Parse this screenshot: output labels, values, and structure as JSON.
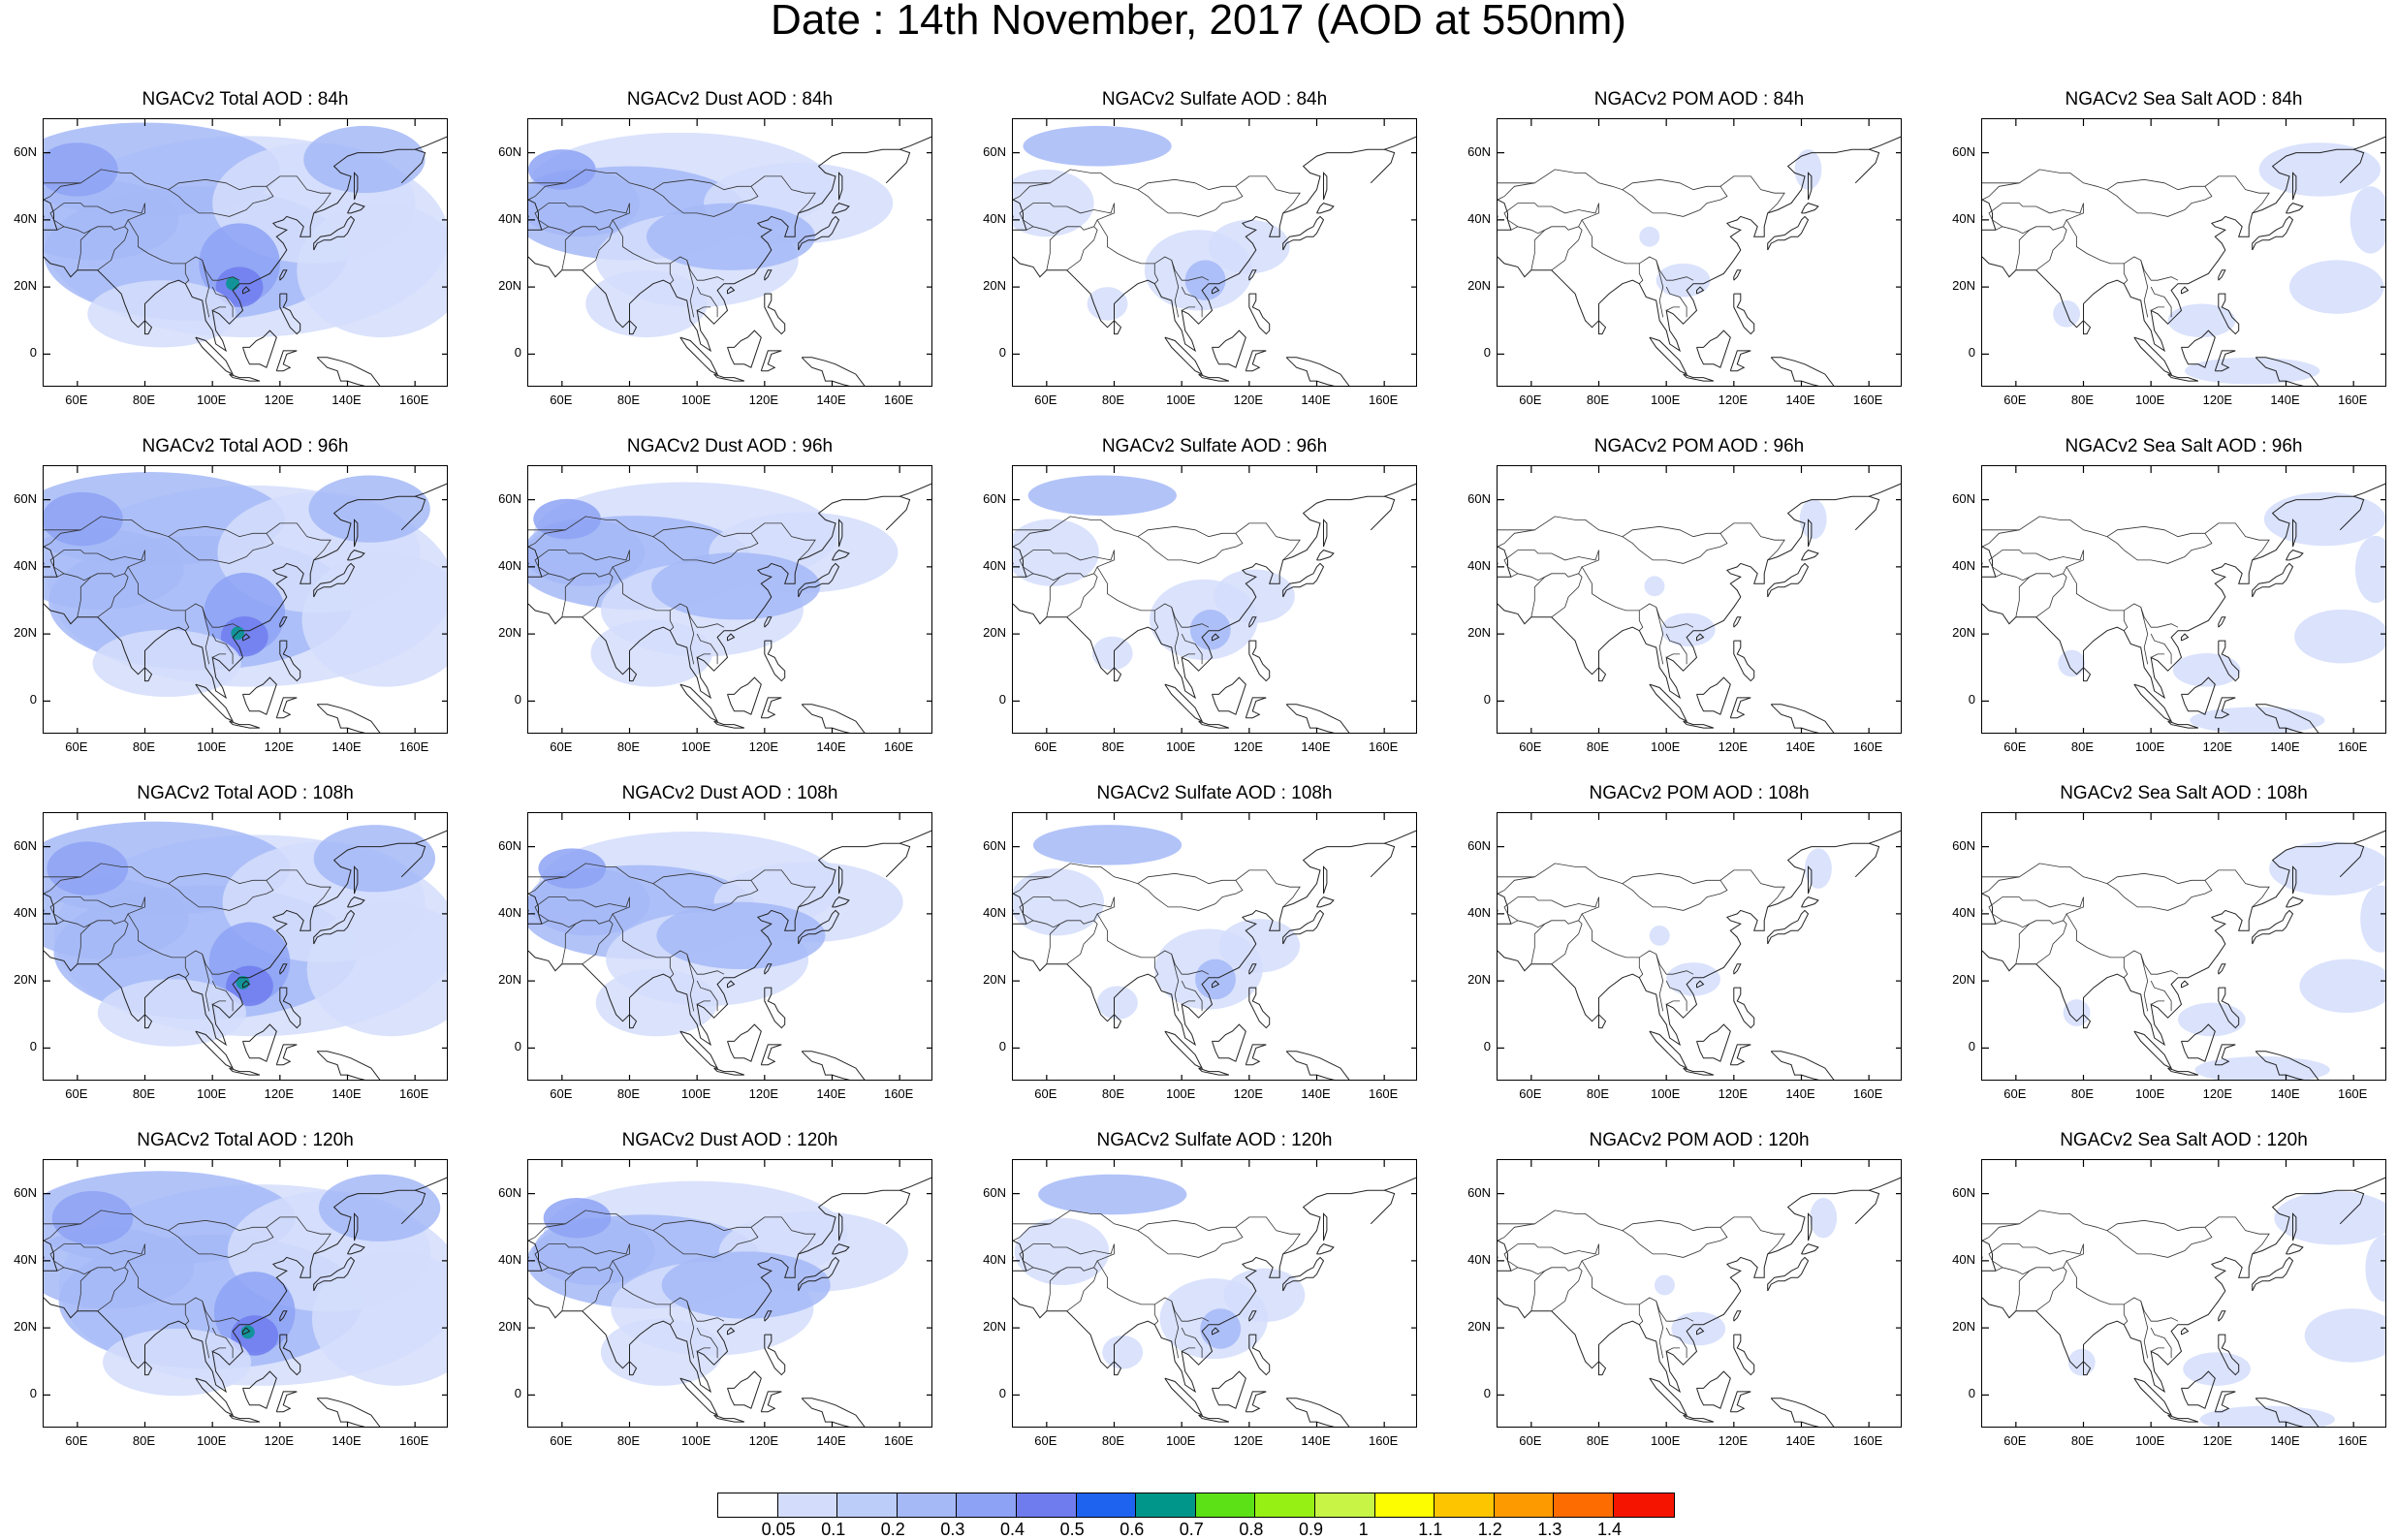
{
  "title": "Date : 14th November, 2017 (AOD at 550nm)",
  "panel_titles": [
    [
      "NGACv2 Total AOD : 84h",
      "NGACv2 Dust AOD : 84h",
      "NGACv2 Sulfate AOD : 84h",
      "NGACv2 POM AOD : 84h",
      "NGACv2 Sea Salt AOD : 84h"
    ],
    [
      "NGACv2 Total AOD : 96h",
      "NGACv2 Dust AOD : 96h",
      "NGACv2 Sulfate AOD : 96h",
      "NGACv2 POM AOD : 96h",
      "NGACv2 Sea Salt AOD : 96h"
    ],
    [
      "NGACv2 Total AOD : 108h",
      "NGACv2 Dust AOD : 108h",
      "NGACv2 Sulfate AOD : 108h",
      "NGACv2 POM AOD : 108h",
      "NGACv2 Sea Salt AOD : 108h"
    ],
    [
      "NGACv2 Total AOD : 120h",
      "NGACv2 Dust AOD : 120h",
      "NGACv2 Sulfate AOD : 120h",
      "NGACv2 POM AOD : 120h",
      "NGACv2 Sea Salt  AOD : 120h"
    ]
  ],
  "map": {
    "lon_range": [
      50,
      170
    ],
    "lat_range": [
      -10,
      70
    ],
    "lon_ticks": [
      "60E",
      "80E",
      "100E",
      "120E",
      "140E",
      "160E"
    ],
    "lon_tick_values": [
      60,
      80,
      100,
      120,
      140,
      160
    ],
    "lat_ticks": [
      "60N",
      "40N",
      "20N",
      "0"
    ],
    "lat_tick_values": [
      60,
      40,
      20,
      0
    ]
  },
  "colorbar": {
    "labels": [
      "0.05",
      "0.1",
      "0.2",
      "0.3",
      "0.4",
      "0.5",
      "0.6",
      "0.7",
      "0.8",
      "0.9",
      "1",
      "1.1",
      "1.2",
      "1.3",
      "1.4"
    ],
    "colors": [
      "#ffffff",
      "#d3ddfb",
      "#bccdfa",
      "#a5b9f7",
      "#8da2f4",
      "#6f7cee",
      "#1e63f0",
      "#00968a",
      "#5ce016",
      "#97f014",
      "#c8f545",
      "#fdfd00",
      "#fdc500",
      "#fd9a00",
      "#fd6c00",
      "#f51400"
    ]
  },
  "colors": {
    "light_blue": "#d3ddfb",
    "mid_blue": "#a5b9f7",
    "strong_blue": "#8da2f4",
    "deep_blue": "#6f7cee",
    "green": "#00968a"
  }
}
